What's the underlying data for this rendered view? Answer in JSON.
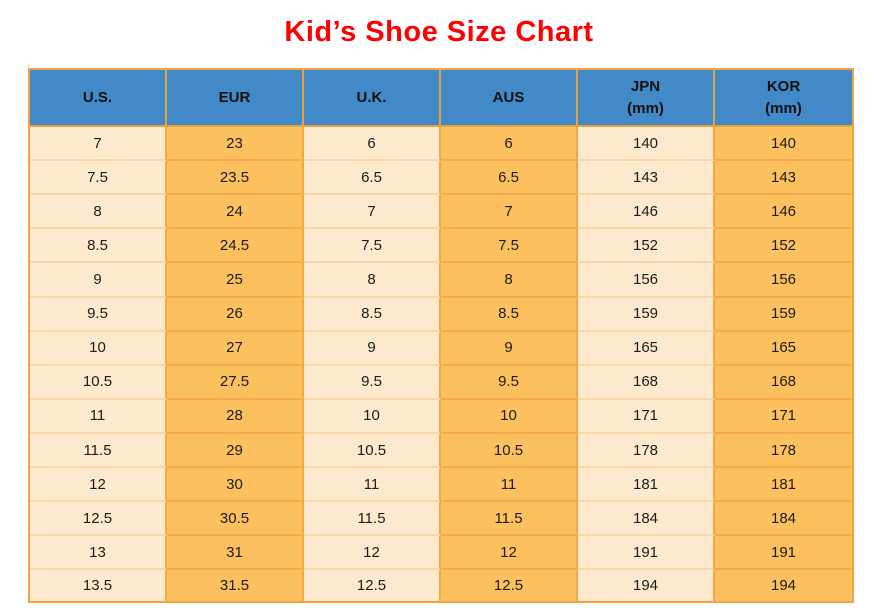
{
  "title": {
    "text": "Kid’s Shoe Size Chart",
    "color": "#ff0000"
  },
  "table": {
    "headers": [
      {
        "line1": "U.S.",
        "line2": ""
      },
      {
        "line1": "EUR",
        "line2": ""
      },
      {
        "line1": "U.K.",
        "line2": ""
      },
      {
        "line1": "AUS",
        "line2": ""
      },
      {
        "line1": "JPN",
        "line2": "(mm)"
      },
      {
        "line1": "KOR",
        "line2": "(mm)"
      }
    ],
    "colors": {
      "header_bg": "#4289c7",
      "column_light_bg": "#fde9cd",
      "column_orange_bg": "#fdc05f",
      "outer_border": "#f0a441",
      "vertical_divider": "#f2a943",
      "row_divider_light": "#f8d7a6",
      "row_divider_orange": "#f5ab4b",
      "header_text": "#111111",
      "cell_text": "#1c1c1c"
    }
  },
  "chart_data": {
    "type": "table",
    "title": "Kid’s Shoe Size Chart",
    "columns": [
      "U.S.",
      "EUR",
      "U.K.",
      "AUS",
      "JPN (mm)",
      "KOR (mm)"
    ],
    "rows": [
      [
        "7",
        "23",
        "6",
        "6",
        "140",
        "140"
      ],
      [
        "7.5",
        "23.5",
        "6.5",
        "6.5",
        "143",
        "143"
      ],
      [
        "8",
        "24",
        "7",
        "7",
        "146",
        "146"
      ],
      [
        "8.5",
        "24.5",
        "7.5",
        "7.5",
        "152",
        "152"
      ],
      [
        "9",
        "25",
        "8",
        "8",
        "156",
        "156"
      ],
      [
        "9.5",
        "26",
        "8.5",
        "8.5",
        "159",
        "159"
      ],
      [
        "10",
        "27",
        "9",
        "9",
        "165",
        "165"
      ],
      [
        "10.5",
        "27.5",
        "9.5",
        "9.5",
        "168",
        "168"
      ],
      [
        "11",
        "28",
        "10",
        "10",
        "171",
        "171"
      ],
      [
        "11.5",
        "29",
        "10.5",
        "10.5",
        "178",
        "178"
      ],
      [
        "12",
        "30",
        "11",
        "11",
        "181",
        "181"
      ],
      [
        "12.5",
        "30.5",
        "11.5",
        "11.5",
        "184",
        "184"
      ],
      [
        "13",
        "31",
        "12",
        "12",
        "191",
        "191"
      ],
      [
        "13.5",
        "31.5",
        "12.5",
        "12.5",
        "194",
        "194"
      ]
    ]
  }
}
